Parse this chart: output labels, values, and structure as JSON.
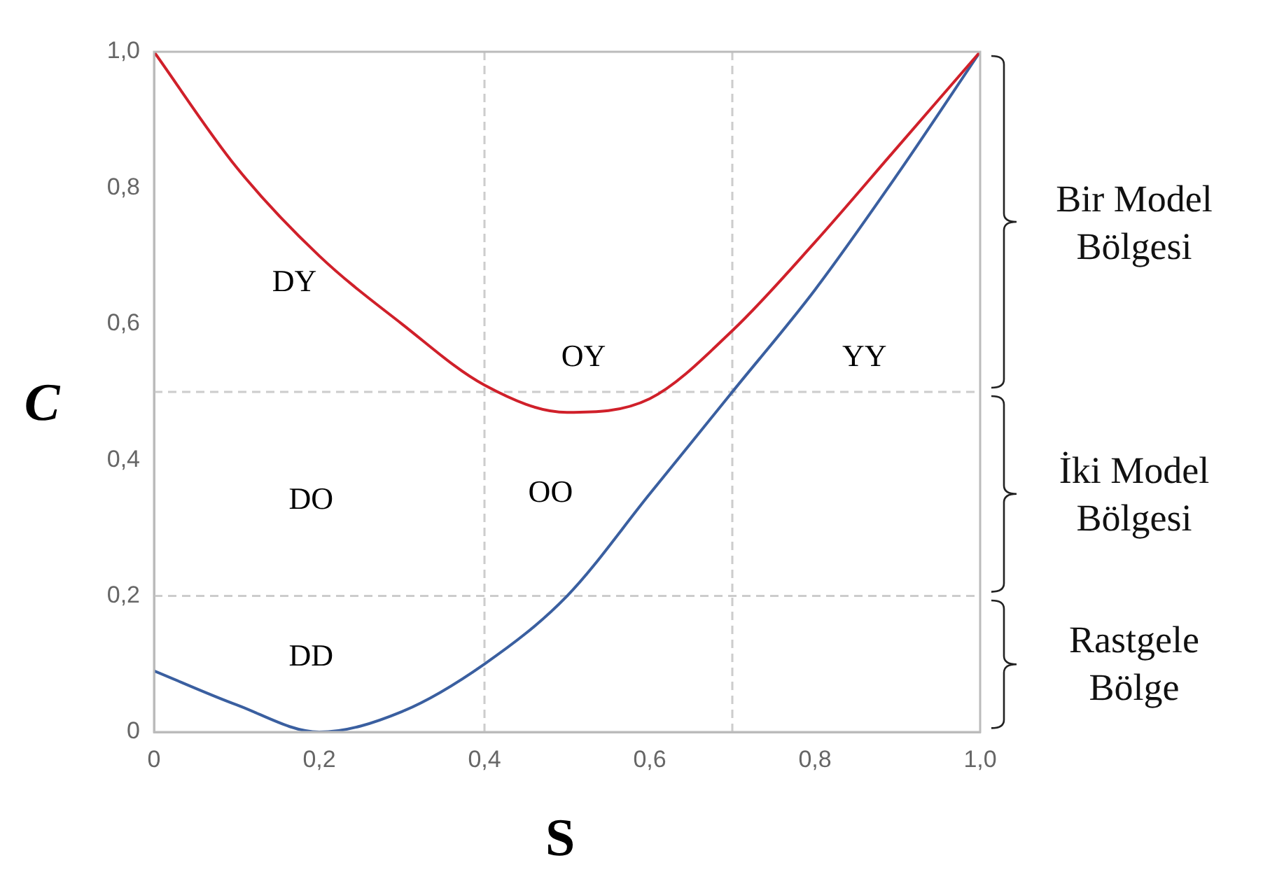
{
  "chart_data": {
    "type": "line",
    "xlabel": "S",
    "ylabel": "C",
    "x": [
      0,
      0.1,
      0.2,
      0.3,
      0.4,
      0.5,
      0.6,
      0.7,
      0.8,
      0.9,
      1.0
    ],
    "series": [
      {
        "color": "#d0202a",
        "values": [
          1.0,
          0.83,
          0.7,
          0.6,
          0.51,
          0.47,
          0.49,
          0.59,
          0.72,
          0.86,
          1.0
        ]
      },
      {
        "color": "#3a5fa0",
        "values": [
          0.09,
          0.04,
          0.0,
          0.03,
          0.1,
          0.2,
          0.35,
          0.5,
          0.65,
          0.82,
          1.0
        ]
      }
    ],
    "xlim": [
      0,
      1
    ],
    "ylim": [
      0,
      1
    ],
    "xticks": [
      0,
      {
        "value": 0.2,
        "label": "0,2"
      },
      {
        "value": 0.4,
        "label": "0,4"
      },
      {
        "value": 0.6,
        "label": "0,6"
      },
      {
        "value": 0.8,
        "label": "0,8"
      },
      {
        "value": 1,
        "label": "1,0"
      }
    ],
    "yticks": [
      0,
      {
        "value": 0.2,
        "label": "0,2"
      },
      {
        "value": 0.4,
        "label": "0,4"
      },
      {
        "value": 0.6,
        "label": "0,6"
      },
      {
        "value": 0.8,
        "label": "0,8"
      },
      {
        "value": 1,
        "label": "1,0"
      }
    ],
    "grid": false,
    "legend": false,
    "marker": "none",
    "line_style": "solid",
    "ref_lines": [
      {
        "axis": "y",
        "value": 0.5,
        "line_style": "dashed",
        "color": "#cccccc"
      },
      {
        "axis": "y",
        "value": 0.2,
        "line_style": "dashed",
        "color": "#cccccc"
      },
      {
        "axis": "x",
        "value": 0.4,
        "line_style": "dashed",
        "color": "#cccccc"
      },
      {
        "axis": "x",
        "value": 0.7,
        "line_style": "dashed",
        "color": "#cccccc"
      }
    ],
    "annotations": [
      "DY",
      "OY",
      "YY",
      "DO",
      "OO",
      "DD",
      "Bir Model Bölgesi",
      "İki Model Bölgesi",
      "Rastgele Bölge"
    ]
  }
}
